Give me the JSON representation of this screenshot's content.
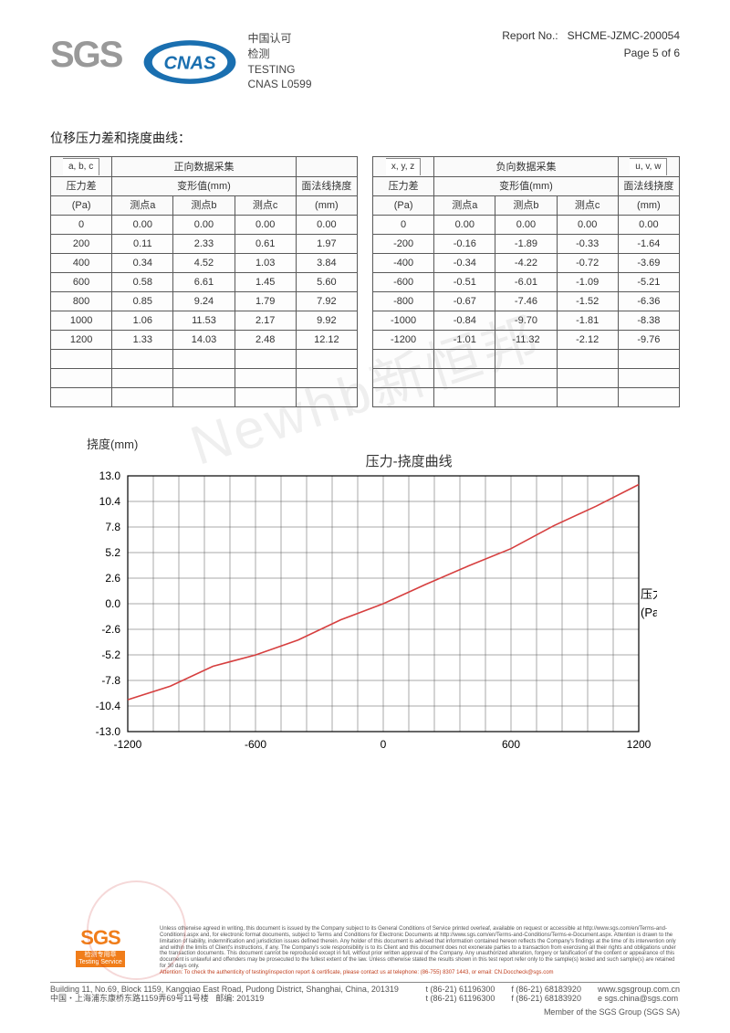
{
  "header": {
    "sgs": "SGS",
    "cnas_labels": {
      "l1": "中国认可",
      "l2": "检测",
      "l3": "TESTING",
      "l4": "CNAS L0599"
    },
    "report_no_label": "Report No.:",
    "report_no": "SHCME-JZMC-200054",
    "page": "Page 5 of 6"
  },
  "watermark": "Newhb新恒邦",
  "section_title": "位移压力差和挠度曲线：",
  "table_pos": {
    "tag": "a, b, c",
    "title": "正向数据采集",
    "headers": {
      "压力差": "压力差",
      "变形值": "变形值(mm)",
      "面法线挠度": "面法线挠度",
      "pa": "(Pa)",
      "a": "测点a",
      "b": "测点b",
      "c": "测点c",
      "mm": "(mm)"
    },
    "rows": [
      [
        "0",
        "0.00",
        "0.00",
        "0.00",
        "0.00"
      ],
      [
        "200",
        "0.11",
        "2.33",
        "0.61",
        "1.97"
      ],
      [
        "400",
        "0.34",
        "4.52",
        "1.03",
        "3.84"
      ],
      [
        "600",
        "0.58",
        "6.61",
        "1.45",
        "5.60"
      ],
      [
        "800",
        "0.85",
        "9.24",
        "1.79",
        "7.92"
      ],
      [
        "1000",
        "1.06",
        "11.53",
        "2.17",
        "9.92"
      ],
      [
        "1200",
        "1.33",
        "14.03",
        "2.48",
        "12.12"
      ]
    ],
    "blank_rows": 3
  },
  "table_neg": {
    "tag1": "x, y, z",
    "title": "负向数据采集",
    "tag2": "u, v, w",
    "headers": {
      "压力差": "压力差",
      "变形值": "变形值(mm)",
      "面法线挠度": "面法线挠度",
      "pa": "(Pa)",
      "a": "测点a",
      "b": "测点b",
      "c": "测点c",
      "mm": "(mm)"
    },
    "rows": [
      [
        "0",
        "0.00",
        "0.00",
        "0.00",
        "0.00"
      ],
      [
        "-200",
        "-0.16",
        "-1.89",
        "-0.33",
        "-1.64"
      ],
      [
        "-400",
        "-0.34",
        "-4.22",
        "-0.72",
        "-3.69"
      ],
      [
        "-600",
        "-0.51",
        "-6.01",
        "-1.09",
        "-5.21"
      ],
      [
        "-800",
        "-0.67",
        "-7.46",
        "-1.52",
        "-6.36"
      ],
      [
        "-1000",
        "-0.84",
        "-9.70",
        "-1.81",
        "-8.38"
      ],
      [
        "-1200",
        "-1.01",
        "-11.32",
        "-2.12",
        "-9.76"
      ]
    ],
    "blank_rows": 3
  },
  "chart": {
    "type": "line",
    "title": "压力-挠度曲线",
    "y_axis_label": "挠度(mm)",
    "x_axis_label_right": "压力",
    "x_axis_label_bottom": "(Pa)",
    "x_ticks": [
      -1200,
      -600,
      0,
      600,
      1200
    ],
    "y_ticks": [
      -13.0,
      -10.4,
      -7.8,
      -5.2,
      -2.6,
      0.0,
      2.6,
      5.2,
      7.8,
      10.4,
      13.0
    ],
    "xlim": [
      -1200,
      1200
    ],
    "ylim": [
      -13.0,
      13.0
    ],
    "grid_x_div": 20,
    "grid_y_div": 10,
    "line_color": "#d63f3f",
    "grid_color": "#555",
    "axis_color": "#000",
    "background": "#ffffff",
    "tick_fontsize": 12,
    "title_fontsize": 15,
    "series": [
      {
        "x": -1200,
        "y": -9.76
      },
      {
        "x": -1000,
        "y": -8.38
      },
      {
        "x": -800,
        "y": -6.36
      },
      {
        "x": -600,
        "y": -5.21
      },
      {
        "x": -400,
        "y": -3.69
      },
      {
        "x": -200,
        "y": -1.64
      },
      {
        "x": 0,
        "y": 0.0
      },
      {
        "x": 200,
        "y": 1.97
      },
      {
        "x": 400,
        "y": 3.84
      },
      {
        "x": 600,
        "y": 5.6
      },
      {
        "x": 800,
        "y": 7.92
      },
      {
        "x": 1000,
        "y": 9.92
      },
      {
        "x": 1200,
        "y": 12.12
      }
    ]
  },
  "footer": {
    "disclaimer": "Unless otherwise agreed in writing, this document is issued by the Company subject to its General Conditions of Service printed overleaf, available on request or accessible at http://www.sgs.com/en/Terms-and-Conditions.aspx and, for electronic format documents, subject to Terms and Conditions for Electronic Documents at http://www.sgs.com/en/Terms-and-Conditions/Terms-e-Document.aspx. Attention is drawn to the limitation of liability, indemnification and jurisdiction issues defined therein. Any holder of this document is advised that information contained hereon reflects the Company's findings at the time of its intervention only and within the limits of Client's instructions, if any. The Company's sole responsibility is to its Client and this document does not exonerate parties to a transaction from exercising all their rights and obligations under the transaction documents. This document cannot be reproduced except in full, without prior written approval of the Company. Any unauthorized alteration, forgery or falsification of the content or appearance of this document is unlawful and offenders may be prosecuted to the fullest extent of the law. Unless otherwise stated the results shown in this test report refer only to the sample(s) tested and such sample(s) are retained for 30 days only.",
    "attention": "Attention: To check the authenticity of testing/inspection report & certificate, please contact us at telephone: (86-755) 8307 1443, or email: CN.Doccheck@sgs.com",
    "addr_en": "Building 11, No.69, Block 1159, Kangqiao East Road, Pudong District, Shanghai, China, 201319",
    "addr_cn": "中国・上海浦东康桥东路1159弄69号11号楼",
    "post": "邮编: 201319",
    "tel": "t (86-21) 61196300",
    "fax": "f (86-21) 68183920",
    "tel2": "t (86-21) 61196300",
    "fax2": "f (86-21) 68183920",
    "web": "www.sgsgroup.com.cn",
    "email": "e sgs.china@sgs.com",
    "testing_service": "检测专用章\nTesting Service",
    "member": "Member of the SGS Group (SGS SA)"
  }
}
